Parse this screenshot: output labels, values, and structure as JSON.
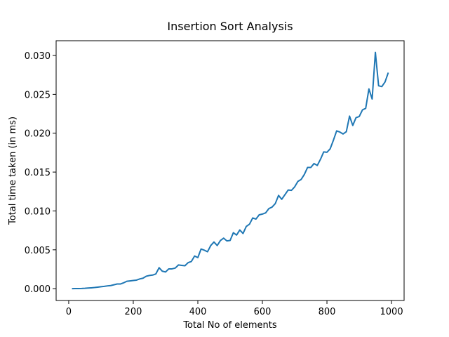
{
  "chart_data": {
    "type": "line",
    "title": "Insertion Sort Analysis",
    "x_label": "Total No of elements",
    "y_label": "Total time taken (in ms)",
    "color": "#1f77b4",
    "x": [
      10,
      20,
      30,
      40,
      50,
      60,
      70,
      80,
      90,
      100,
      110,
      120,
      130,
      140,
      150,
      160,
      170,
      180,
      190,
      200,
      210,
      220,
      230,
      240,
      250,
      260,
      270,
      280,
      290,
      300,
      310,
      320,
      330,
      340,
      350,
      360,
      370,
      380,
      390,
      400,
      410,
      420,
      430,
      440,
      450,
      460,
      470,
      480,
      490,
      500,
      510,
      520,
      530,
      540,
      550,
      560,
      570,
      580,
      590,
      600,
      610,
      620,
      630,
      640,
      650,
      660,
      670,
      680,
      690,
      700,
      710,
      720,
      730,
      740,
      750,
      760,
      770,
      780,
      790,
      800,
      810,
      820,
      830,
      840,
      850,
      860,
      870,
      880,
      890,
      900,
      910,
      920,
      930,
      940,
      950,
      960,
      970,
      980,
      990
    ],
    "values": [
      0.0,
      1e-05,
      2e-05,
      3e-05,
      5e-05,
      8e-05,
      0.00011,
      0.00015,
      0.0002,
      0.00025,
      0.0003,
      0.00036,
      0.0004,
      0.0005,
      0.0006,
      0.0006,
      0.00075,
      0.00095,
      0.001,
      0.00105,
      0.0011,
      0.00125,
      0.00135,
      0.0016,
      0.0017,
      0.00175,
      0.0019,
      0.0027,
      0.00225,
      0.00215,
      0.00255,
      0.00255,
      0.00265,
      0.00305,
      0.003,
      0.00295,
      0.00335,
      0.0035,
      0.0042,
      0.004,
      0.0051,
      0.00495,
      0.00475,
      0.00555,
      0.006,
      0.00555,
      0.0062,
      0.0065,
      0.00615,
      0.0062,
      0.0072,
      0.0069,
      0.00755,
      0.0071,
      0.008,
      0.0083,
      0.0091,
      0.00895,
      0.0095,
      0.0096,
      0.00975,
      0.0103,
      0.0105,
      0.01095,
      0.012,
      0.0115,
      0.0121,
      0.0127,
      0.01265,
      0.0131,
      0.0138,
      0.01405,
      0.0147,
      0.0156,
      0.0156,
      0.0161,
      0.01585,
      0.01665,
      0.0176,
      0.01755,
      0.018,
      0.0191,
      0.0203,
      0.02015,
      0.0199,
      0.0202,
      0.0222,
      0.021,
      0.022,
      0.02215,
      0.023,
      0.0232,
      0.0257,
      0.0244,
      0.0304,
      0.0261,
      0.026,
      0.0266,
      0.0278
    ],
    "xlim": [
      -39,
      1039
    ],
    "ylim": [
      -0.00152,
      0.0319
    ],
    "xticks": [
      0,
      200,
      400,
      600,
      800,
      1000
    ],
    "yticks": [
      {
        "value": 0,
        "label": "0.000"
      },
      {
        "value": 0.005,
        "label": "0.005"
      },
      {
        "value": 0.01,
        "label": "0.010"
      },
      {
        "value": 0.015,
        "label": "0.015"
      },
      {
        "value": 0.02,
        "label": "0.020"
      },
      {
        "value": 0.025,
        "label": "0.025"
      },
      {
        "value": 0.03,
        "label": "0.030"
      }
    ]
  }
}
